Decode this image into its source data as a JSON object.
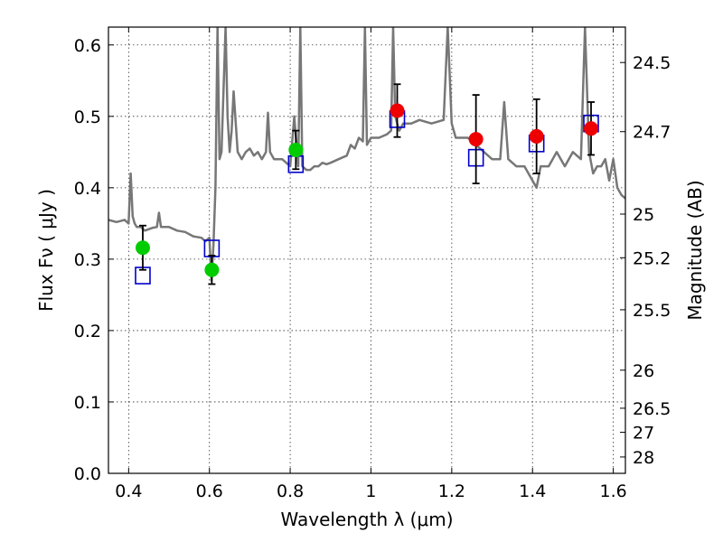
{
  "chart_data": {
    "type": "scatter",
    "xlabel": "Wavelength  λ (μm)",
    "ylabel": "Flux  Fν  ( μJy )",
    "y2label": "Magnitude (AB)",
    "xlim": [
      0.35,
      1.63
    ],
    "ylim": [
      0.0,
      0.625
    ],
    "grid": true,
    "x_ticks": [
      0.4,
      0.6,
      0.8,
      1.0,
      1.2,
      1.4,
      1.6
    ],
    "x_tick_labels": [
      "0.4",
      "0.6",
      "0.8",
      "1",
      "1.2",
      "1.4",
      "1.6"
    ],
    "y_ticks": [
      0.0,
      0.1,
      0.2,
      0.3,
      0.4,
      0.5,
      0.6
    ],
    "y_tick_labels": [
      "0.0",
      "0.1",
      "0.2",
      "0.3",
      "0.4",
      "0.5",
      "0.6"
    ],
    "y2_ticks": [
      {
        "label": "24.5",
        "flux": 0.5754
      },
      {
        "label": "24.7",
        "flux": 0.4786
      },
      {
        "label": "25",
        "flux": 0.3631
      },
      {
        "label": "25.2",
        "flux": 0.302
      },
      {
        "label": "25.5",
        "flux": 0.2291
      },
      {
        "label": "26",
        "flux": 0.1445
      },
      {
        "label": "26.5",
        "flux": 0.0912
      },
      {
        "label": "27",
        "flux": 0.0575
      },
      {
        "label": "28",
        "flux": 0.0229
      }
    ],
    "series": [
      {
        "color": "#00cc00",
        "marker": "circle",
        "points": [
          {
            "x": 0.435,
            "y": 0.316,
            "err": 0.031
          },
          {
            "x": 0.606,
            "y": 0.285,
            "err": 0.02
          },
          {
            "x": 0.814,
            "y": 0.453,
            "err": 0.027
          }
        ]
      },
      {
        "color": "#ee0000",
        "marker": "circle",
        "points": [
          {
            "x": 1.065,
            "y": 0.508,
            "err": 0.037
          },
          {
            "x": 1.26,
            "y": 0.468,
            "err": 0.062
          },
          {
            "x": 1.41,
            "y": 0.472,
            "err": 0.052
          },
          {
            "x": 1.545,
            "y": 0.483,
            "err": 0.037
          }
        ]
      },
      {
        "color": "#0000cc",
        "marker": "open-square",
        "points": [
          {
            "x": 0.435,
            "y": 0.277
          },
          {
            "x": 0.606,
            "y": 0.315
          },
          {
            "x": 0.814,
            "y": 0.433
          },
          {
            "x": 1.065,
            "y": 0.496
          },
          {
            "x": 1.26,
            "y": 0.442
          },
          {
            "x": 1.41,
            "y": 0.462
          },
          {
            "x": 1.545,
            "y": 0.49
          }
        ]
      },
      {
        "color": "#777777",
        "style": "line",
        "x": [
          0.35,
          0.37,
          0.39,
          0.4,
          0.405,
          0.41,
          0.415,
          0.42,
          0.43,
          0.44,
          0.45,
          0.46,
          0.47,
          0.475,
          0.48,
          0.49,
          0.5,
          0.52,
          0.54,
          0.56,
          0.58,
          0.59,
          0.6,
          0.605,
          0.61,
          0.615,
          0.62,
          0.625,
          0.63,
          0.64,
          0.645,
          0.65,
          0.655,
          0.66,
          0.67,
          0.68,
          0.69,
          0.7,
          0.71,
          0.72,
          0.73,
          0.74,
          0.745,
          0.75,
          0.76,
          0.78,
          0.8,
          0.81,
          0.82,
          0.825,
          0.83,
          0.84,
          0.85,
          0.86,
          0.87,
          0.88,
          0.89,
          0.9,
          0.92,
          0.94,
          0.95,
          0.96,
          0.97,
          0.98,
          0.985,
          0.99,
          1.0,
          1.02,
          1.04,
          1.05,
          1.055,
          1.06,
          1.07,
          1.08,
          1.1,
          1.12,
          1.15,
          1.18,
          1.19,
          1.2,
          1.21,
          1.22,
          1.24,
          1.26,
          1.28,
          1.3,
          1.32,
          1.33,
          1.34,
          1.36,
          1.38,
          1.4,
          1.41,
          1.42,
          1.44,
          1.46,
          1.48,
          1.5,
          1.52,
          1.53,
          1.54,
          1.55,
          1.56,
          1.57,
          1.58,
          1.59,
          1.6,
          1.61,
          1.62,
          1.63
        ],
        "y": [
          0.355,
          0.352,
          0.355,
          0.35,
          0.42,
          0.36,
          0.35,
          0.345,
          0.345,
          0.34,
          0.342,
          0.344,
          0.345,
          0.365,
          0.345,
          0.345,
          0.345,
          0.34,
          0.338,
          0.332,
          0.33,
          0.325,
          0.33,
          0.27,
          0.32,
          0.4,
          0.625,
          0.44,
          0.45,
          0.625,
          0.5,
          0.45,
          0.48,
          0.535,
          0.45,
          0.44,
          0.45,
          0.455,
          0.445,
          0.45,
          0.44,
          0.45,
          0.505,
          0.45,
          0.44,
          0.44,
          0.43,
          0.5,
          0.43,
          0.625,
          0.43,
          0.425,
          0.425,
          0.43,
          0.43,
          0.435,
          0.433,
          0.435,
          0.44,
          0.445,
          0.46,
          0.455,
          0.47,
          0.465,
          0.625,
          0.46,
          0.47,
          0.47,
          0.475,
          0.48,
          0.625,
          0.5,
          0.48,
          0.49,
          0.49,
          0.495,
          0.49,
          0.495,
          0.625,
          0.49,
          0.47,
          0.47,
          0.47,
          0.46,
          0.45,
          0.44,
          0.44,
          0.52,
          0.44,
          0.43,
          0.43,
          0.41,
          0.4,
          0.43,
          0.43,
          0.45,
          0.43,
          0.45,
          0.44,
          0.625,
          0.45,
          0.42,
          0.43,
          0.43,
          0.44,
          0.41,
          0.44,
          0.4,
          0.39,
          0.385
        ]
      }
    ]
  }
}
